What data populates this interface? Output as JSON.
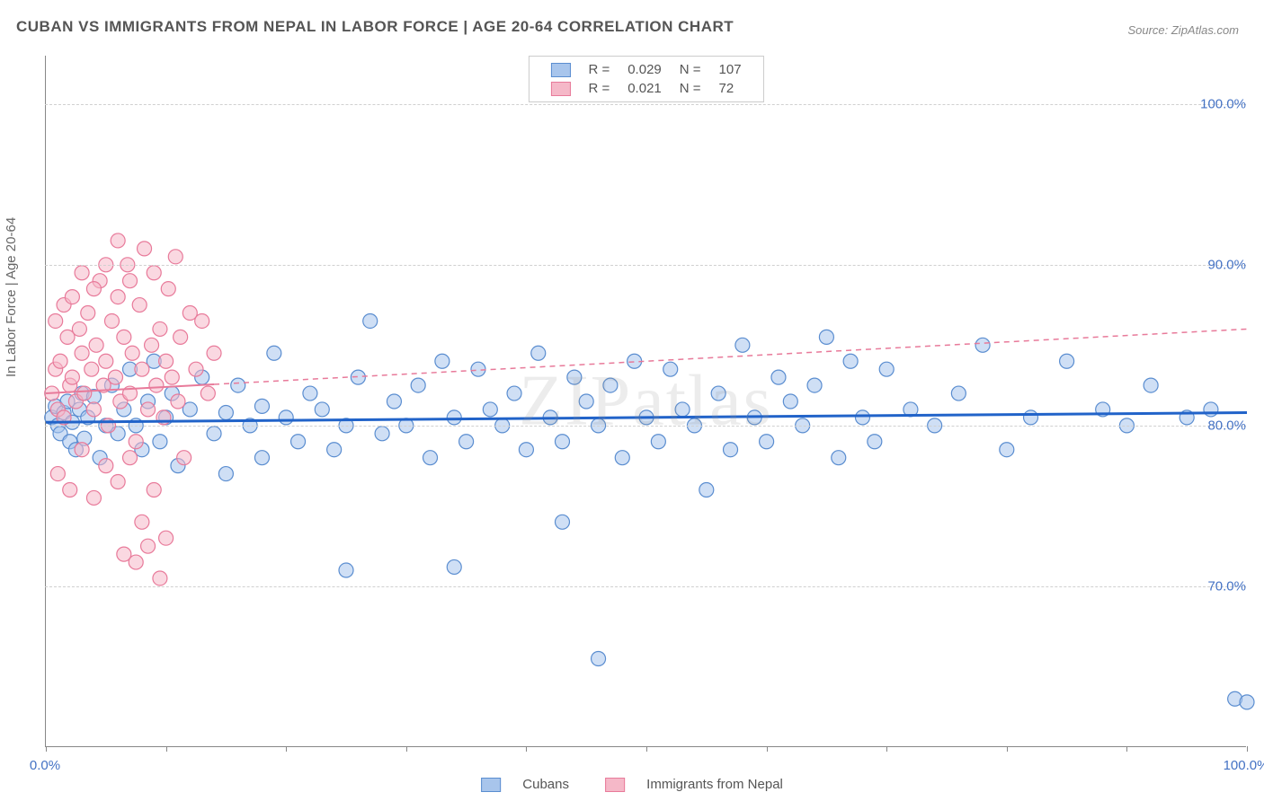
{
  "title": "CUBAN VS IMMIGRANTS FROM NEPAL IN LABOR FORCE | AGE 20-64 CORRELATION CHART",
  "source": "Source: ZipAtlas.com",
  "y_axis_label": "In Labor Force | Age 20-64",
  "watermark": "ZIPatlas",
  "chart": {
    "type": "scatter",
    "xlim": [
      0,
      100
    ],
    "ylim": [
      60,
      103
    ],
    "y_ticks": [
      70,
      80,
      90,
      100
    ],
    "y_tick_labels": [
      "70.0%",
      "80.0%",
      "90.0%",
      "100.0%"
    ],
    "x_ticks": [
      0,
      10,
      20,
      30,
      40,
      50,
      60,
      70,
      80,
      90,
      100
    ],
    "x_tick_labels": {
      "0": "0.0%",
      "100": "100.0%"
    },
    "grid_color": "#d0d0d0",
    "background_color": "#ffffff",
    "marker_radius": 8,
    "marker_opacity": 0.55,
    "series": [
      {
        "name": "Cubans",
        "color_fill": "#a8c5ec",
        "color_stroke": "#5a8dd0",
        "R": "0.029",
        "N": "107",
        "regression": {
          "x1": 0,
          "y1": 80.2,
          "x2": 100,
          "y2": 80.8,
          "stroke": "#2163c9",
          "width": 3,
          "dash": "none"
        },
        "points": [
          [
            0.5,
            80.5
          ],
          [
            0.8,
            81.2
          ],
          [
            1.0,
            80.0
          ],
          [
            1.2,
            79.5
          ],
          [
            1.5,
            80.8
          ],
          [
            1.8,
            81.5
          ],
          [
            2.0,
            79.0
          ],
          [
            2.2,
            80.2
          ],
          [
            2.5,
            78.5
          ],
          [
            2.8,
            81.0
          ],
          [
            3.0,
            82.0
          ],
          [
            3.2,
            79.2
          ],
          [
            3.5,
            80.5
          ],
          [
            4.0,
            81.8
          ],
          [
            4.5,
            78.0
          ],
          [
            5.0,
            80.0
          ],
          [
            5.5,
            82.5
          ],
          [
            6.0,
            79.5
          ],
          [
            6.5,
            81.0
          ],
          [
            7.0,
            83.5
          ],
          [
            7.5,
            80.0
          ],
          [
            8.0,
            78.5
          ],
          [
            8.5,
            81.5
          ],
          [
            9.0,
            84.0
          ],
          [
            9.5,
            79.0
          ],
          [
            10,
            80.5
          ],
          [
            10.5,
            82.0
          ],
          [
            11,
            77.5
          ],
          [
            12,
            81.0
          ],
          [
            13,
            83.0
          ],
          [
            14,
            79.5
          ],
          [
            15,
            80.8
          ],
          [
            15,
            77.0
          ],
          [
            16,
            82.5
          ],
          [
            17,
            80.0
          ],
          [
            18,
            81.2
          ],
          [
            18,
            78.0
          ],
          [
            19,
            84.5
          ],
          [
            20,
            80.5
          ],
          [
            21,
            79.0
          ],
          [
            22,
            82.0
          ],
          [
            23,
            81.0
          ],
          [
            24,
            78.5
          ],
          [
            25,
            80.0
          ],
          [
            25,
            71.0
          ],
          [
            26,
            83.0
          ],
          [
            27,
            86.5
          ],
          [
            28,
            79.5
          ],
          [
            29,
            81.5
          ],
          [
            30,
            80.0
          ],
          [
            31,
            82.5
          ],
          [
            32,
            78.0
          ],
          [
            33,
            84.0
          ],
          [
            34,
            80.5
          ],
          [
            34,
            71.2
          ],
          [
            35,
            79.0
          ],
          [
            36,
            83.5
          ],
          [
            37,
            81.0
          ],
          [
            38,
            80.0
          ],
          [
            39,
            82.0
          ],
          [
            40,
            78.5
          ],
          [
            41,
            84.5
          ],
          [
            42,
            80.5
          ],
          [
            43,
            79.0
          ],
          [
            43,
            74.0
          ],
          [
            44,
            83.0
          ],
          [
            45,
            81.5
          ],
          [
            46,
            80.0
          ],
          [
            46,
            65.5
          ],
          [
            47,
            82.5
          ],
          [
            48,
            78.0
          ],
          [
            49,
            84.0
          ],
          [
            50,
            80.5
          ],
          [
            51,
            79.0
          ],
          [
            52,
            83.5
          ],
          [
            53,
            81.0
          ],
          [
            54,
            80.0
          ],
          [
            55,
            76.0
          ],
          [
            56,
            82.0
          ],
          [
            57,
            78.5
          ],
          [
            58,
            85.0
          ],
          [
            59,
            80.5
          ],
          [
            60,
            79.0
          ],
          [
            61,
            83.0
          ],
          [
            62,
            81.5
          ],
          [
            63,
            80.0
          ],
          [
            64,
            82.5
          ],
          [
            65,
            85.5
          ],
          [
            66,
            78.0
          ],
          [
            67,
            84.0
          ],
          [
            68,
            80.5
          ],
          [
            69,
            79.0
          ],
          [
            70,
            83.5
          ],
          [
            72,
            81.0
          ],
          [
            74,
            80.0
          ],
          [
            76,
            82.0
          ],
          [
            78,
            85.0
          ],
          [
            80,
            78.5
          ],
          [
            82,
            80.5
          ],
          [
            85,
            84.0
          ],
          [
            88,
            81.0
          ],
          [
            90,
            80.0
          ],
          [
            92,
            82.5
          ],
          [
            95,
            80.5
          ],
          [
            97,
            81.0
          ],
          [
            99,
            63.0
          ],
          [
            100,
            62.8
          ]
        ]
      },
      {
        "name": "Immigrants from Nepal",
        "color_fill": "#f5b8c8",
        "color_stroke": "#e87a9a",
        "R": "0.021",
        "N": "72",
        "regression": {
          "x1": 0,
          "y1": 82.0,
          "x2": 100,
          "y2": 86.0,
          "stroke": "#e87a9a",
          "width": 2,
          "dash": "6,5"
        },
        "regression_solid_until": 14,
        "points": [
          [
            0.5,
            82.0
          ],
          [
            0.8,
            83.5
          ],
          [
            1.0,
            81.0
          ],
          [
            1.2,
            84.0
          ],
          [
            1.5,
            80.5
          ],
          [
            1.8,
            85.5
          ],
          [
            2.0,
            82.5
          ],
          [
            2.2,
            83.0
          ],
          [
            2.5,
            81.5
          ],
          [
            2.8,
            86.0
          ],
          [
            3.0,
            84.5
          ],
          [
            3.2,
            82.0
          ],
          [
            3.5,
            87.0
          ],
          [
            3.8,
            83.5
          ],
          [
            4.0,
            81.0
          ],
          [
            4.2,
            85.0
          ],
          [
            4.5,
            89.0
          ],
          [
            4.8,
            82.5
          ],
          [
            5.0,
            84.0
          ],
          [
            5.2,
            80.0
          ],
          [
            5.5,
            86.5
          ],
          [
            5.8,
            83.0
          ],
          [
            6.0,
            88.0
          ],
          [
            6.2,
            81.5
          ],
          [
            6.5,
            85.5
          ],
          [
            6.8,
            90.0
          ],
          [
            7.0,
            82.0
          ],
          [
            7.2,
            84.5
          ],
          [
            7.5,
            79.0
          ],
          [
            7.8,
            87.5
          ],
          [
            8.0,
            83.5
          ],
          [
            8.2,
            91.0
          ],
          [
            8.5,
            81.0
          ],
          [
            8.8,
            85.0
          ],
          [
            9.0,
            89.5
          ],
          [
            9.2,
            82.5
          ],
          [
            9.5,
            86.0
          ],
          [
            9.8,
            80.5
          ],
          [
            10,
            84.0
          ],
          [
            10.2,
            88.5
          ],
          [
            10.5,
            83.0
          ],
          [
            10.8,
            90.5
          ],
          [
            11,
            81.5
          ],
          [
            11.2,
            85.5
          ],
          [
            11.5,
            78.0
          ],
          [
            12,
            87.0
          ],
          [
            12.5,
            83.5
          ],
          [
            13,
            86.5
          ],
          [
            13.5,
            82.0
          ],
          [
            14,
            84.5
          ],
          [
            1.0,
            77.0
          ],
          [
            2.0,
            76.0
          ],
          [
            3.0,
            78.5
          ],
          [
            4.0,
            75.5
          ],
          [
            5.0,
            77.5
          ],
          [
            6.0,
            76.5
          ],
          [
            6.5,
            72.0
          ],
          [
            7.0,
            78.0
          ],
          [
            7.5,
            71.5
          ],
          [
            8.0,
            74.0
          ],
          [
            8.5,
            72.5
          ],
          [
            9.0,
            76.0
          ],
          [
            9.5,
            70.5
          ],
          [
            10,
            73.0
          ],
          [
            0.8,
            86.5
          ],
          [
            1.5,
            87.5
          ],
          [
            2.2,
            88.0
          ],
          [
            3.0,
            89.5
          ],
          [
            4.0,
            88.5
          ],
          [
            5.0,
            90.0
          ],
          [
            6.0,
            91.5
          ],
          [
            7.0,
            89.0
          ]
        ]
      }
    ]
  },
  "legend_top": {
    "rows": [
      {
        "swatch_fill": "#a8c5ec",
        "swatch_stroke": "#5a8dd0",
        "R_label": "R =",
        "R_value": "0.029",
        "N_label": "N =",
        "N_value": "107"
      },
      {
        "swatch_fill": "#f5b8c8",
        "swatch_stroke": "#e87a9a",
        "R_label": "R =",
        "R_value": "0.021",
        "N_label": "N =",
        "N_value": "72"
      }
    ]
  },
  "legend_bottom": {
    "items": [
      {
        "swatch_fill": "#a8c5ec",
        "swatch_stroke": "#5a8dd0",
        "label": "Cubans"
      },
      {
        "swatch_fill": "#f5b8c8",
        "swatch_stroke": "#e87a9a",
        "label": "Immigrants from Nepal"
      }
    ]
  }
}
